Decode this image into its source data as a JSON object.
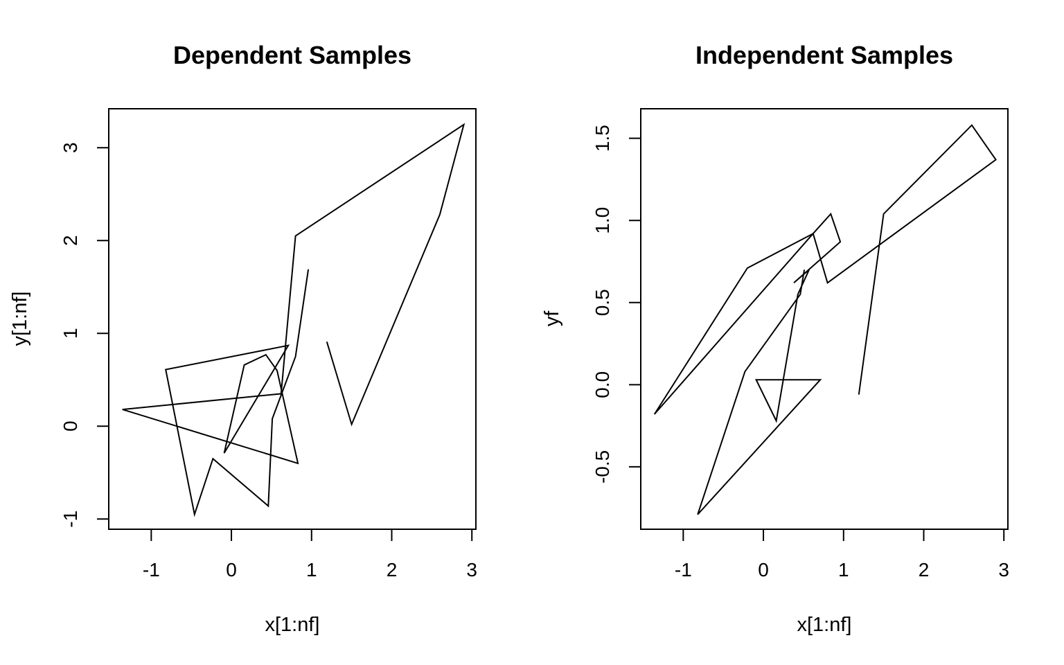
{
  "chart_data": [
    {
      "type": "line",
      "title": "Dependent Samples",
      "xlabel": "x[1:nf]",
      "ylabel": "y[1:nf]",
      "xlim": [
        -1.53,
        3.05
      ],
      "ylim": [
        -1.11,
        3.42
      ],
      "xticks": [
        -1,
        0,
        1,
        2,
        3
      ],
      "yticks": [
        -1,
        0,
        1,
        2,
        3
      ],
      "grid": false,
      "line_color": "#000000",
      "x": [
        1.19,
        1.5,
        2.6,
        2.9,
        0.8,
        0.62,
        -1.36,
        0.83,
        0.57,
        0.43,
        0.16,
        -0.09,
        0.71,
        -0.82,
        -0.46,
        -0.23,
        0.46,
        0.51,
        0.8,
        0.96
      ],
      "y": [
        0.91,
        0.02,
        2.28,
        3.25,
        2.05,
        0.35,
        0.18,
        -0.4,
        0.6,
        0.77,
        0.66,
        -0.29,
        0.87,
        0.61,
        -0.95,
        -0.35,
        -0.86,
        0.08,
        0.75,
        1.69
      ]
    },
    {
      "type": "line",
      "title": "Independent Samples",
      "xlabel": "x[1:nf]",
      "ylabel": "yf",
      "xlim": [
        -1.53,
        3.05
      ],
      "ylim": [
        -0.88,
        1.68
      ],
      "xticks": [
        -1,
        0,
        1,
        2,
        3
      ],
      "yticks": [
        -0.5,
        0.0,
        0.5,
        1.0,
        1.5
      ],
      "grid": false,
      "line_color": "#000000",
      "x": [
        1.19,
        1.5,
        2.6,
        2.9,
        0.8,
        0.62,
        -1.36,
        -0.2,
        0.62,
        0.84,
        0.96,
        0.38,
        0.57,
        0.43,
        0.16,
        -0.09,
        0.71,
        -0.82,
        -0.23,
        0.46,
        0.51
      ],
      "y": [
        -0.06,
        1.04,
        1.58,
        1.37,
        0.62,
        0.92,
        -0.18,
        0.71,
        0.92,
        1.04,
        0.87,
        0.62,
        0.7,
        0.55,
        -0.22,
        0.03,
        0.03,
        -0.79,
        0.08,
        0.55,
        0.7
      ]
    }
  ]
}
